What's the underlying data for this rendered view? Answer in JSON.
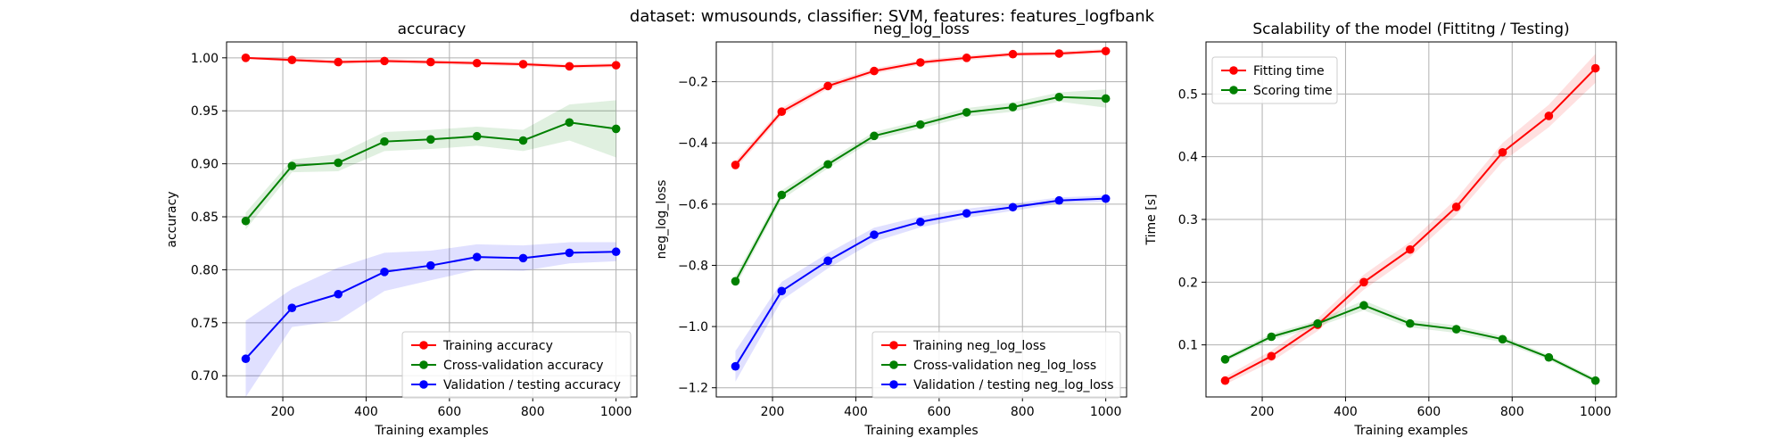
{
  "suptitle": "dataset: wmusounds, classifier: SVM, features: features_logfbank",
  "colors": {
    "training": "#ff0000",
    "cv": "#008000",
    "validation": "#0000ff",
    "grid": "#b0b0b0"
  },
  "chart_data": [
    {
      "type": "line",
      "title": "accuracy",
      "xlabel": "Training examples",
      "ylabel": "accuracy",
      "xlim": [
        65,
        1050
      ],
      "ylim": [
        0.68,
        1.015
      ],
      "xticks": [
        200,
        400,
        600,
        800,
        1000
      ],
      "yticks": [
        0.7,
        0.75,
        0.8,
        0.85,
        0.9,
        0.95,
        1.0
      ],
      "ytick_labels": [
        "0.70",
        "0.75",
        "0.80",
        "0.85",
        "0.90",
        "0.95",
        "1.00"
      ],
      "grid": true,
      "legend_position": "lower-right",
      "x": [
        111,
        222,
        333,
        444,
        555,
        666,
        777,
        888,
        1000
      ],
      "series": [
        {
          "name": "Training accuracy",
          "color": "#ff0000",
          "values": [
            1.0,
            0.998,
            0.996,
            0.997,
            0.996,
            0.995,
            0.994,
            0.992,
            0.993
          ],
          "band": [
            [
              0.999,
              1.001
            ],
            [
              0.996,
              1.0
            ],
            [
              0.994,
              0.998
            ],
            [
              0.995,
              0.999
            ],
            [
              0.994,
              0.998
            ],
            [
              0.993,
              0.997
            ],
            [
              0.992,
              0.996
            ],
            [
              0.99,
              0.994
            ],
            [
              0.991,
              0.995
            ]
          ]
        },
        {
          "name": "Cross-validation accuracy",
          "color": "#008000",
          "values": [
            0.846,
            0.898,
            0.901,
            0.921,
            0.923,
            0.926,
            0.922,
            0.939,
            0.933
          ],
          "band": [
            [
              0.838,
              0.854
            ],
            [
              0.892,
              0.904
            ],
            [
              0.893,
              0.909
            ],
            [
              0.912,
              0.93
            ],
            [
              0.914,
              0.932
            ],
            [
              0.917,
              0.935
            ],
            [
              0.912,
              0.932
            ],
            [
              0.922,
              0.956
            ],
            [
              0.906,
              0.96
            ]
          ]
        },
        {
          "name": "Validation / testing accuracy",
          "color": "#0000ff",
          "values": [
            0.716,
            0.764,
            0.777,
            0.798,
            0.804,
            0.812,
            0.811,
            0.816,
            0.817
          ],
          "band": [
            [
              0.68,
              0.752
            ],
            [
              0.746,
              0.782
            ],
            [
              0.752,
              0.802
            ],
            [
              0.78,
              0.816
            ],
            [
              0.79,
              0.818
            ],
            [
              0.8,
              0.824
            ],
            [
              0.799,
              0.823
            ],
            [
              0.806,
              0.826
            ],
            [
              0.808,
              0.826
            ]
          ]
        }
      ]
    },
    {
      "type": "line",
      "title": "neg_log_loss",
      "xlabel": "Training examples",
      "ylabel": "neg_log_loss",
      "xlim": [
        65,
        1050
      ],
      "ylim": [
        -1.23,
        -0.07
      ],
      "xticks": [
        200,
        400,
        600,
        800,
        1000
      ],
      "yticks": [
        -1.2,
        -1.0,
        -0.8,
        -0.6,
        -0.4,
        -0.2
      ],
      "ytick_labels": [
        "−1.2",
        "−1.0",
        "−0.8",
        "−0.6",
        "−0.4",
        "−0.2"
      ],
      "grid": true,
      "legend_position": "lower-right",
      "x": [
        111,
        222,
        333,
        444,
        555,
        666,
        777,
        888,
        1000
      ],
      "series": [
        {
          "name": "Training neg_log_loss",
          "color": "#ff0000",
          "values": [
            -0.472,
            -0.298,
            -0.214,
            -0.165,
            -0.137,
            -0.122,
            -0.11,
            -0.108,
            -0.1
          ],
          "band": [
            [
              -0.485,
              -0.459
            ],
            [
              -0.31,
              -0.286
            ],
            [
              -0.224,
              -0.204
            ],
            [
              -0.174,
              -0.156
            ],
            [
              -0.145,
              -0.129
            ],
            [
              -0.13,
              -0.114
            ],
            [
              -0.117,
              -0.103
            ],
            [
              -0.115,
              -0.101
            ],
            [
              -0.107,
              -0.093
            ]
          ]
        },
        {
          "name": "Cross-validation neg_log_loss",
          "color": "#008000",
          "values": [
            -0.852,
            -0.57,
            -0.47,
            -0.377,
            -0.34,
            -0.3,
            -0.283,
            -0.25,
            -0.255
          ],
          "band": [
            [
              -0.87,
              -0.834
            ],
            [
              -0.585,
              -0.555
            ],
            [
              -0.483,
              -0.457
            ],
            [
              -0.39,
              -0.364
            ],
            [
              -0.353,
              -0.327
            ],
            [
              -0.314,
              -0.286
            ],
            [
              -0.298,
              -0.268
            ],
            [
              -0.265,
              -0.235
            ],
            [
              -0.285,
              -0.225
            ]
          ]
        },
        {
          "name": "Validation / testing neg_log_loss",
          "color": "#0000ff",
          "values": [
            -1.13,
            -0.884,
            -0.785,
            -0.7,
            -0.658,
            -0.63,
            -0.61,
            -0.588,
            -0.582
          ],
          "band": [
            [
              -1.18,
              -1.08
            ],
            [
              -0.914,
              -0.854
            ],
            [
              -0.81,
              -0.76
            ],
            [
              -0.723,
              -0.677
            ],
            [
              -0.676,
              -0.64
            ],
            [
              -0.645,
              -0.615
            ],
            [
              -0.622,
              -0.598
            ],
            [
              -0.598,
              -0.578
            ],
            [
              -0.592,
              -0.572
            ]
          ]
        }
      ]
    },
    {
      "type": "line",
      "title": "Scalability of the model (Fittitng / Testing)",
      "xlabel": "Training examples",
      "ylabel": "Time [s]",
      "xlim": [
        65,
        1050
      ],
      "ylim": [
        0.017,
        0.583
      ],
      "xticks": [
        200,
        400,
        600,
        800,
        1000
      ],
      "yticks": [
        0.1,
        0.2,
        0.3,
        0.4,
        0.5
      ],
      "ytick_labels": [
        "0.1",
        "0.2",
        "0.3",
        "0.4",
        "0.5"
      ],
      "grid": true,
      "legend_position": "upper-left",
      "x": [
        111,
        222,
        333,
        444,
        555,
        666,
        777,
        888,
        1000
      ],
      "series": [
        {
          "name": "Fitting time",
          "color": "#ff0000",
          "values": [
            0.043,
            0.082,
            0.132,
            0.2,
            0.252,
            0.32,
            0.407,
            0.465,
            0.541
          ],
          "band": [
            [
              0.037,
              0.049
            ],
            [
              0.073,
              0.091
            ],
            [
              0.122,
              0.142
            ],
            [
              0.188,
              0.212
            ],
            [
              0.24,
              0.264
            ],
            [
              0.307,
              0.333
            ],
            [
              0.392,
              0.422
            ],
            [
              0.447,
              0.483
            ],
            [
              0.518,
              0.564
            ]
          ]
        },
        {
          "name": "Scoring time",
          "color": "#008000",
          "values": [
            0.077,
            0.113,
            0.134,
            0.163,
            0.134,
            0.125,
            0.109,
            0.08,
            0.043
          ],
          "band": [
            [
              0.073,
              0.081
            ],
            [
              0.108,
              0.118
            ],
            [
              0.129,
              0.139
            ],
            [
              0.155,
              0.171
            ],
            [
              0.128,
              0.14
            ],
            [
              0.119,
              0.131
            ],
            [
              0.104,
              0.114
            ],
            [
              0.076,
              0.084
            ],
            [
              0.039,
              0.047
            ]
          ]
        }
      ]
    }
  ]
}
